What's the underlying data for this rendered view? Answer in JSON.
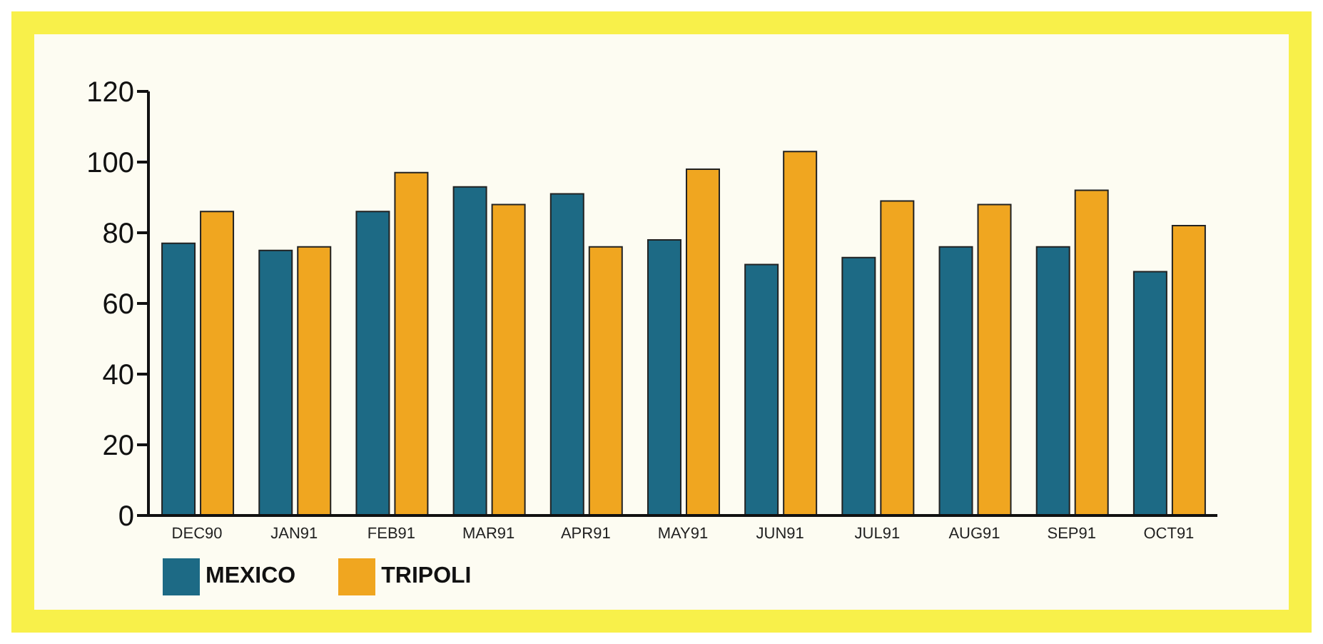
{
  "chart_data": {
    "type": "bar",
    "categories": [
      "DEC90",
      "JAN91",
      "FEB91",
      "MAR91",
      "APR91",
      "MAY91",
      "JUN91",
      "JUL91",
      "AUG91",
      "SEP91",
      "OCT91"
    ],
    "series": [
      {
        "name": "MEXICO",
        "color": "#1d6a85",
        "values": [
          77,
          75,
          86,
          93,
          91,
          78,
          71,
          73,
          76,
          76,
          69
        ]
      },
      {
        "name": "TRIPOLI",
        "color": "#f0a620",
        "values": [
          86,
          76,
          97,
          88,
          76,
          98,
          103,
          89,
          88,
          92,
          82
        ]
      }
    ],
    "ylim": [
      0,
      120
    ],
    "yticks": [
      0,
      20,
      40,
      60,
      80,
      100,
      120
    ],
    "grid": false,
    "legend": "bottom left"
  }
}
